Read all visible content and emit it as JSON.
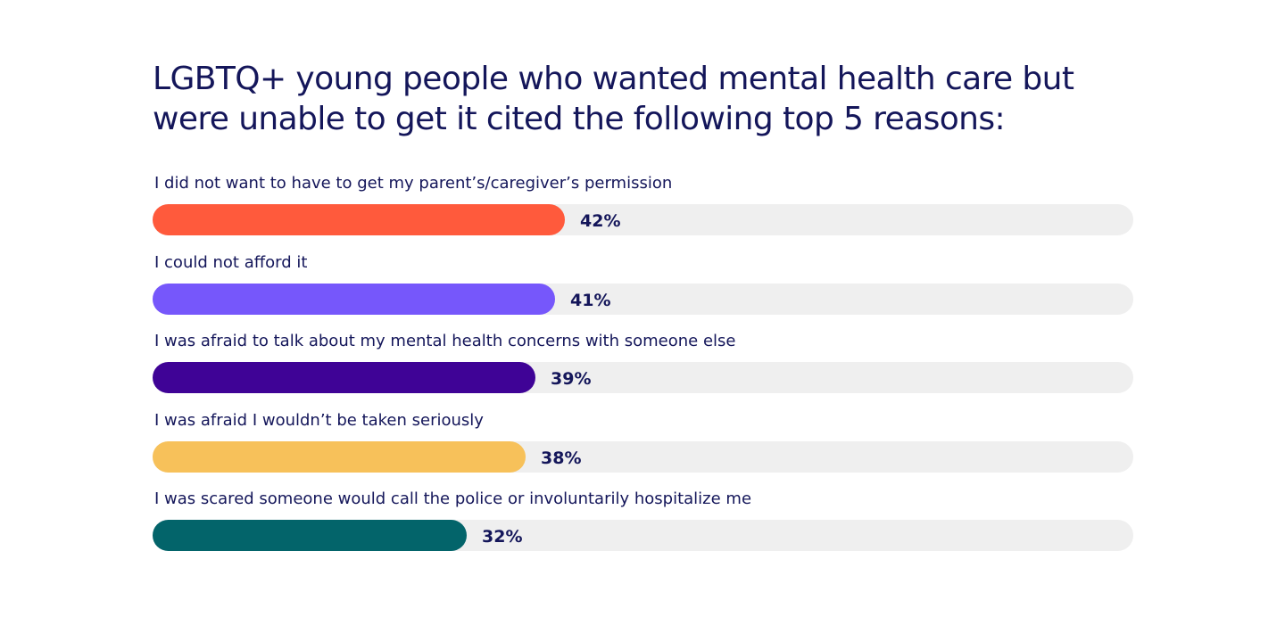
{
  "chart_data": {
    "type": "bar",
    "orientation": "horizontal",
    "title": "LGBTQ+ young people who wanted mental health care but were unable to get it cited the following top 5 reasons:",
    "categories": [
      "I did not want to have to get my parent’s/caregiver’s permission",
      "I could not afford it",
      "I was afraid to talk about my mental health concerns with someone else",
      "I was afraid I wouldn’t be taken seriously",
      "I was scared someone would call the police or involuntarily hospitalize me"
    ],
    "values": [
      42,
      41,
      39,
      38,
      32
    ],
    "value_labels": [
      "42%",
      "41%",
      "39%",
      "38%",
      "32%"
    ],
    "colors": [
      "#ff5a3c",
      "#7657fb",
      "#3f0396",
      "#f7c15a",
      "#03646a"
    ],
    "track_color": "#efefef",
    "xlim": [
      0,
      100
    ],
    "grid": false,
    "legend": "none"
  }
}
